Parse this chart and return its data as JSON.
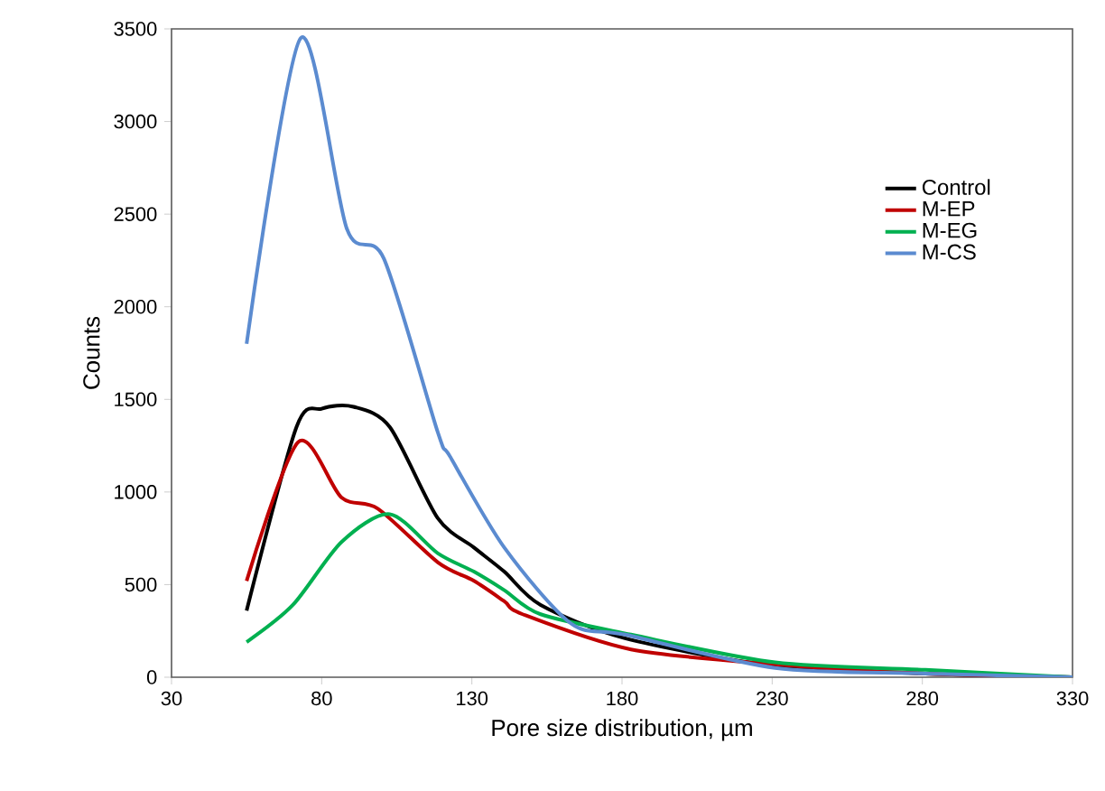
{
  "chart_data": {
    "type": "line",
    "xlabel": "Pore size distribution, µm",
    "ylabel": "Counts",
    "xlim": [
      30,
      330
    ],
    "xticks": [
      30,
      80,
      130,
      180,
      230,
      280,
      330
    ],
    "ylim": [
      0,
      3500
    ],
    "yticks": [
      0,
      500,
      1000,
      1500,
      2000,
      2500,
      3000,
      3500
    ],
    "legend": "right",
    "grid": false,
    "marker": "none",
    "line_style": "solid",
    "series": [
      {
        "name": "Control",
        "color": "#000000",
        "x": [
          55,
          71.6,
          80,
          90.6,
          102.7,
          118.6,
          130.7,
          140.8,
          152.9,
          181,
          231,
          281,
          330
        ],
        "values": [
          360,
          1350,
          1450,
          1460,
          1350,
          860,
          700,
          570,
          390,
          210,
          60,
          20,
          0
        ]
      },
      {
        "name": "M-EP",
        "color": "#c00000",
        "x": [
          55,
          72.2,
          86.6,
          98.7,
          118.7,
          130.7,
          140.8,
          146.9,
          183,
          231,
          281,
          330
        ],
        "values": [
          520,
          1270,
          970,
          910,
          620,
          520,
          410,
          340,
          150,
          70,
          20,
          0
        ]
      },
      {
        "name": "M-EG",
        "color": "#00b050",
        "x": [
          55,
          70.4,
          86.6,
          102.7,
          118.6,
          130.7,
          140.8,
          152.9,
          183,
          231,
          281,
          330
        ],
        "values": [
          190,
          390,
          730,
          880,
          670,
          570,
          470,
          340,
          230,
          80,
          40,
          0
        ]
      },
      {
        "name": "M-CS",
        "color": "#5b8bd0",
        "x": [
          55,
          73,
          88.4,
          100.7,
          118.7,
          122.8,
          140.8,
          163,
          181,
          231,
          281,
          330
        ],
        "values": [
          1800,
          3450,
          2420,
          2260,
          1320,
          1190,
          700,
          290,
          230,
          50,
          20,
          0
        ]
      }
    ]
  }
}
